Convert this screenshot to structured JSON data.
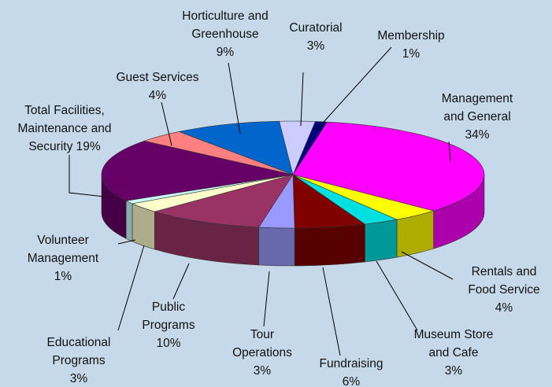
{
  "chart_data": {
    "type": "pie3d",
    "categories": [
      "Membership",
      "Management and General",
      "Rentals and Food Service",
      "Museum Store and Cafe",
      "Fundraising",
      "Tour Operations",
      "Public Programs",
      "Educational Programs",
      "Volunteer Management",
      "Total Facilities, Maintenance and Security",
      "Guest Services",
      "Horticulture and Greenhouse",
      "Curatorial"
    ],
    "values": [
      1,
      34,
      4,
      3,
      6,
      3,
      10,
      3,
      1,
      19,
      4,
      9,
      3
    ],
    "value_labels": [
      "1%",
      "34%",
      "4%",
      "3%",
      "6%",
      "3%",
      "10%",
      "3%",
      "1%",
      "19%",
      "4%",
      "9%",
      "3%"
    ],
    "colors": [
      "#000080",
      "#ff00ff",
      "#ffff00",
      "#00e0e0",
      "#800000",
      "#9999ff",
      "#993366",
      "#ffffcc",
      "#ccffff",
      "#660066",
      "#ff8080",
      "#0066cc",
      "#ccccff"
    ]
  }
}
